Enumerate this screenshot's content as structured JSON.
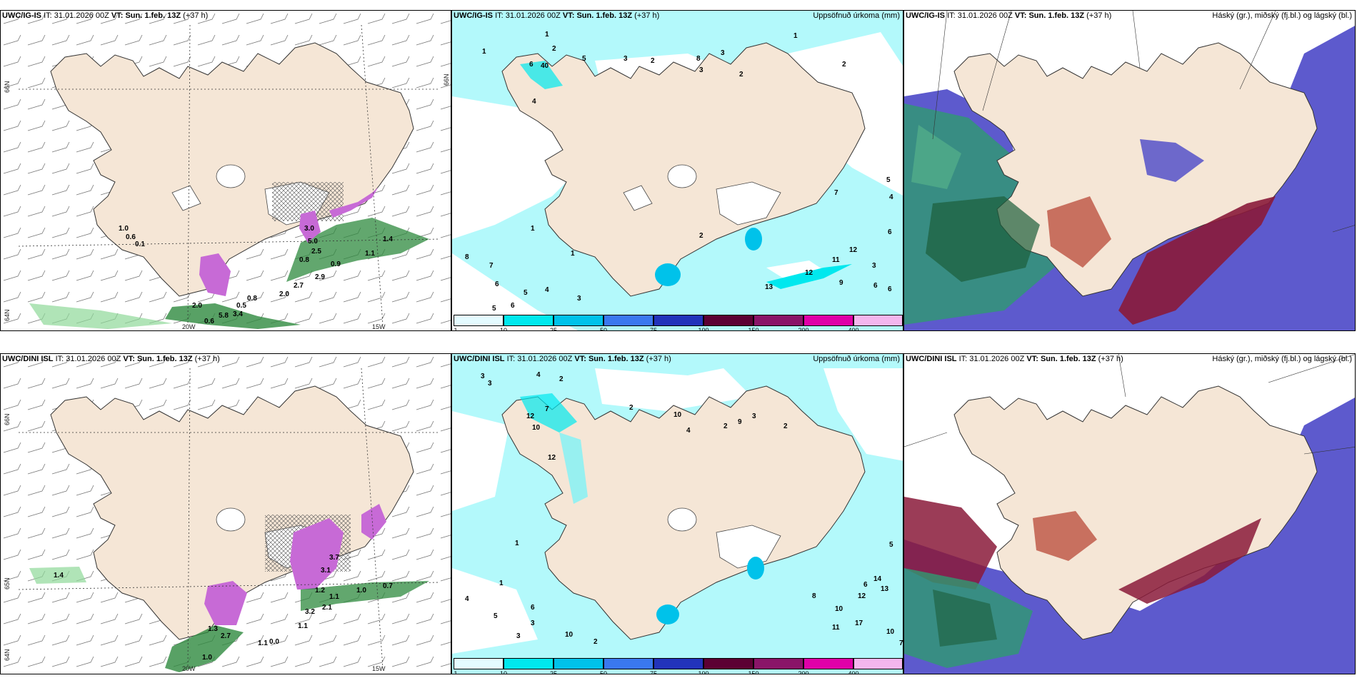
{
  "panels": {
    "p1": {
      "model": "UWC/IG-IS",
      "init_label": "IT:",
      "init": "31.01.2026 00Z",
      "vt_label": "VT:",
      "vt": "Sun. 1.feb. 13Z",
      "lead": "(+37 h)"
    },
    "p2": {
      "model": "UWC/IG-IS",
      "init_label": "IT:",
      "init": "31.01.2026 00Z",
      "vt_label": "VT:",
      "vt": "Sun. 1.feb. 13Z",
      "lead": "(+37 h)",
      "field": "Uppsöfnuð úrkoma (mm)"
    },
    "p3": {
      "model": "UWC/IG-IS",
      "init_label": "IT:",
      "init": "31.01.2026 00Z",
      "vt_label": "VT:",
      "vt": "Sun. 1.feb. 13Z",
      "lead": "(+37 h)",
      "field": "Háský (gr.), miðský (fj.bl.) og lágský (bl.)"
    },
    "p4": {
      "model": "UWC/DINI ISL",
      "init_label": "IT:",
      "init": "31.01.2026 00Z",
      "vt_label": "VT:",
      "vt": "Sun. 1.feb. 13Z",
      "lead": "(+37 h)"
    },
    "p5": {
      "model": "UWC/DINI ISL",
      "init_label": "IT:",
      "init": "31.01.2026 00Z",
      "vt_label": "VT:",
      "vt": "Sun. 1.feb. 13Z",
      "lead": "(+37 h)",
      "field": "Uppsöfnuð úrkoma (mm)"
    },
    "p6": {
      "model": "UWC/DINI ISL",
      "init_label": "IT:",
      "init": "31.01.2026 00Z",
      "vt_label": "VT:",
      "vt": "Sun. 1.feb. 13Z",
      "lead": "(+37 h)",
      "field": "Háský (gr.), miðský (fj.bl.) og lágský (bl.)"
    }
  },
  "grid_labels": {
    "lat66": "66N",
    "lat64": "64N",
    "lon20": "20W",
    "lon15": "15W",
    "lat65": "65N"
  },
  "colorbar": {
    "ticks": [
      "1",
      "10",
      "25",
      "50",
      "75",
      "100",
      "150",
      "200",
      "400"
    ],
    "colors": [
      "#e4fbff",
      "#00e8ee",
      "#00c2ea",
      "#3a78ef",
      "#2233bb",
      "#5c0033",
      "#8a1468",
      "#e000a8",
      "#f4b6ee"
    ]
  },
  "snow_values_top": [
    "1.0",
    "0.6",
    "0.1",
    "3.0",
    "5.0",
    "2.5",
    "0.8",
    "0.9",
    "1.1",
    "2.9",
    "2.7",
    "2.0",
    "0.8",
    "0.5",
    "3.4",
    "5.8",
    "0.6",
    "1.4",
    "2.0"
  ],
  "snow_values_bottom": [
    "1.4",
    "1.2",
    "1.1",
    "0.7",
    "1.0",
    "3.2",
    "3.7",
    "3.1",
    "2.7",
    "1.3",
    "0.0",
    "1.1",
    "1.0",
    "1.1",
    "2.1"
  ],
  "precip_values_top": [
    "1",
    "1",
    "2",
    "3",
    "2",
    "3",
    "5",
    "8",
    "3",
    "2",
    "1",
    "2",
    "6",
    "40",
    "4",
    "7",
    "6",
    "5",
    "4",
    "3",
    "1",
    "1",
    "2",
    "13",
    "12",
    "11",
    "9",
    "6",
    "12",
    "3",
    "5",
    "4",
    "6",
    "6",
    "8",
    "7",
    "6",
    "5"
  ],
  "precip_values_bottom": [
    "3",
    "3",
    "4",
    "2",
    "12",
    "10",
    "7",
    "12",
    "2",
    "10",
    "4",
    "2",
    "3",
    "9",
    "2",
    "5",
    "14",
    "13",
    "12",
    "10",
    "11",
    "17",
    "10",
    "7",
    "8",
    "6",
    "4",
    "3",
    "1",
    "1",
    "5",
    "6",
    "10",
    "3",
    "2"
  ],
  "colors": {
    "land": "#f5e6d6",
    "sea_precip": "#b3f9fb",
    "snow_green": "#2e8a3e",
    "snow_purple": "#c76ad6",
    "high_cloud": "#2f9a70",
    "mid_cloud": "#8a1a3a",
    "low_cloud": "#4b48c8"
  }
}
